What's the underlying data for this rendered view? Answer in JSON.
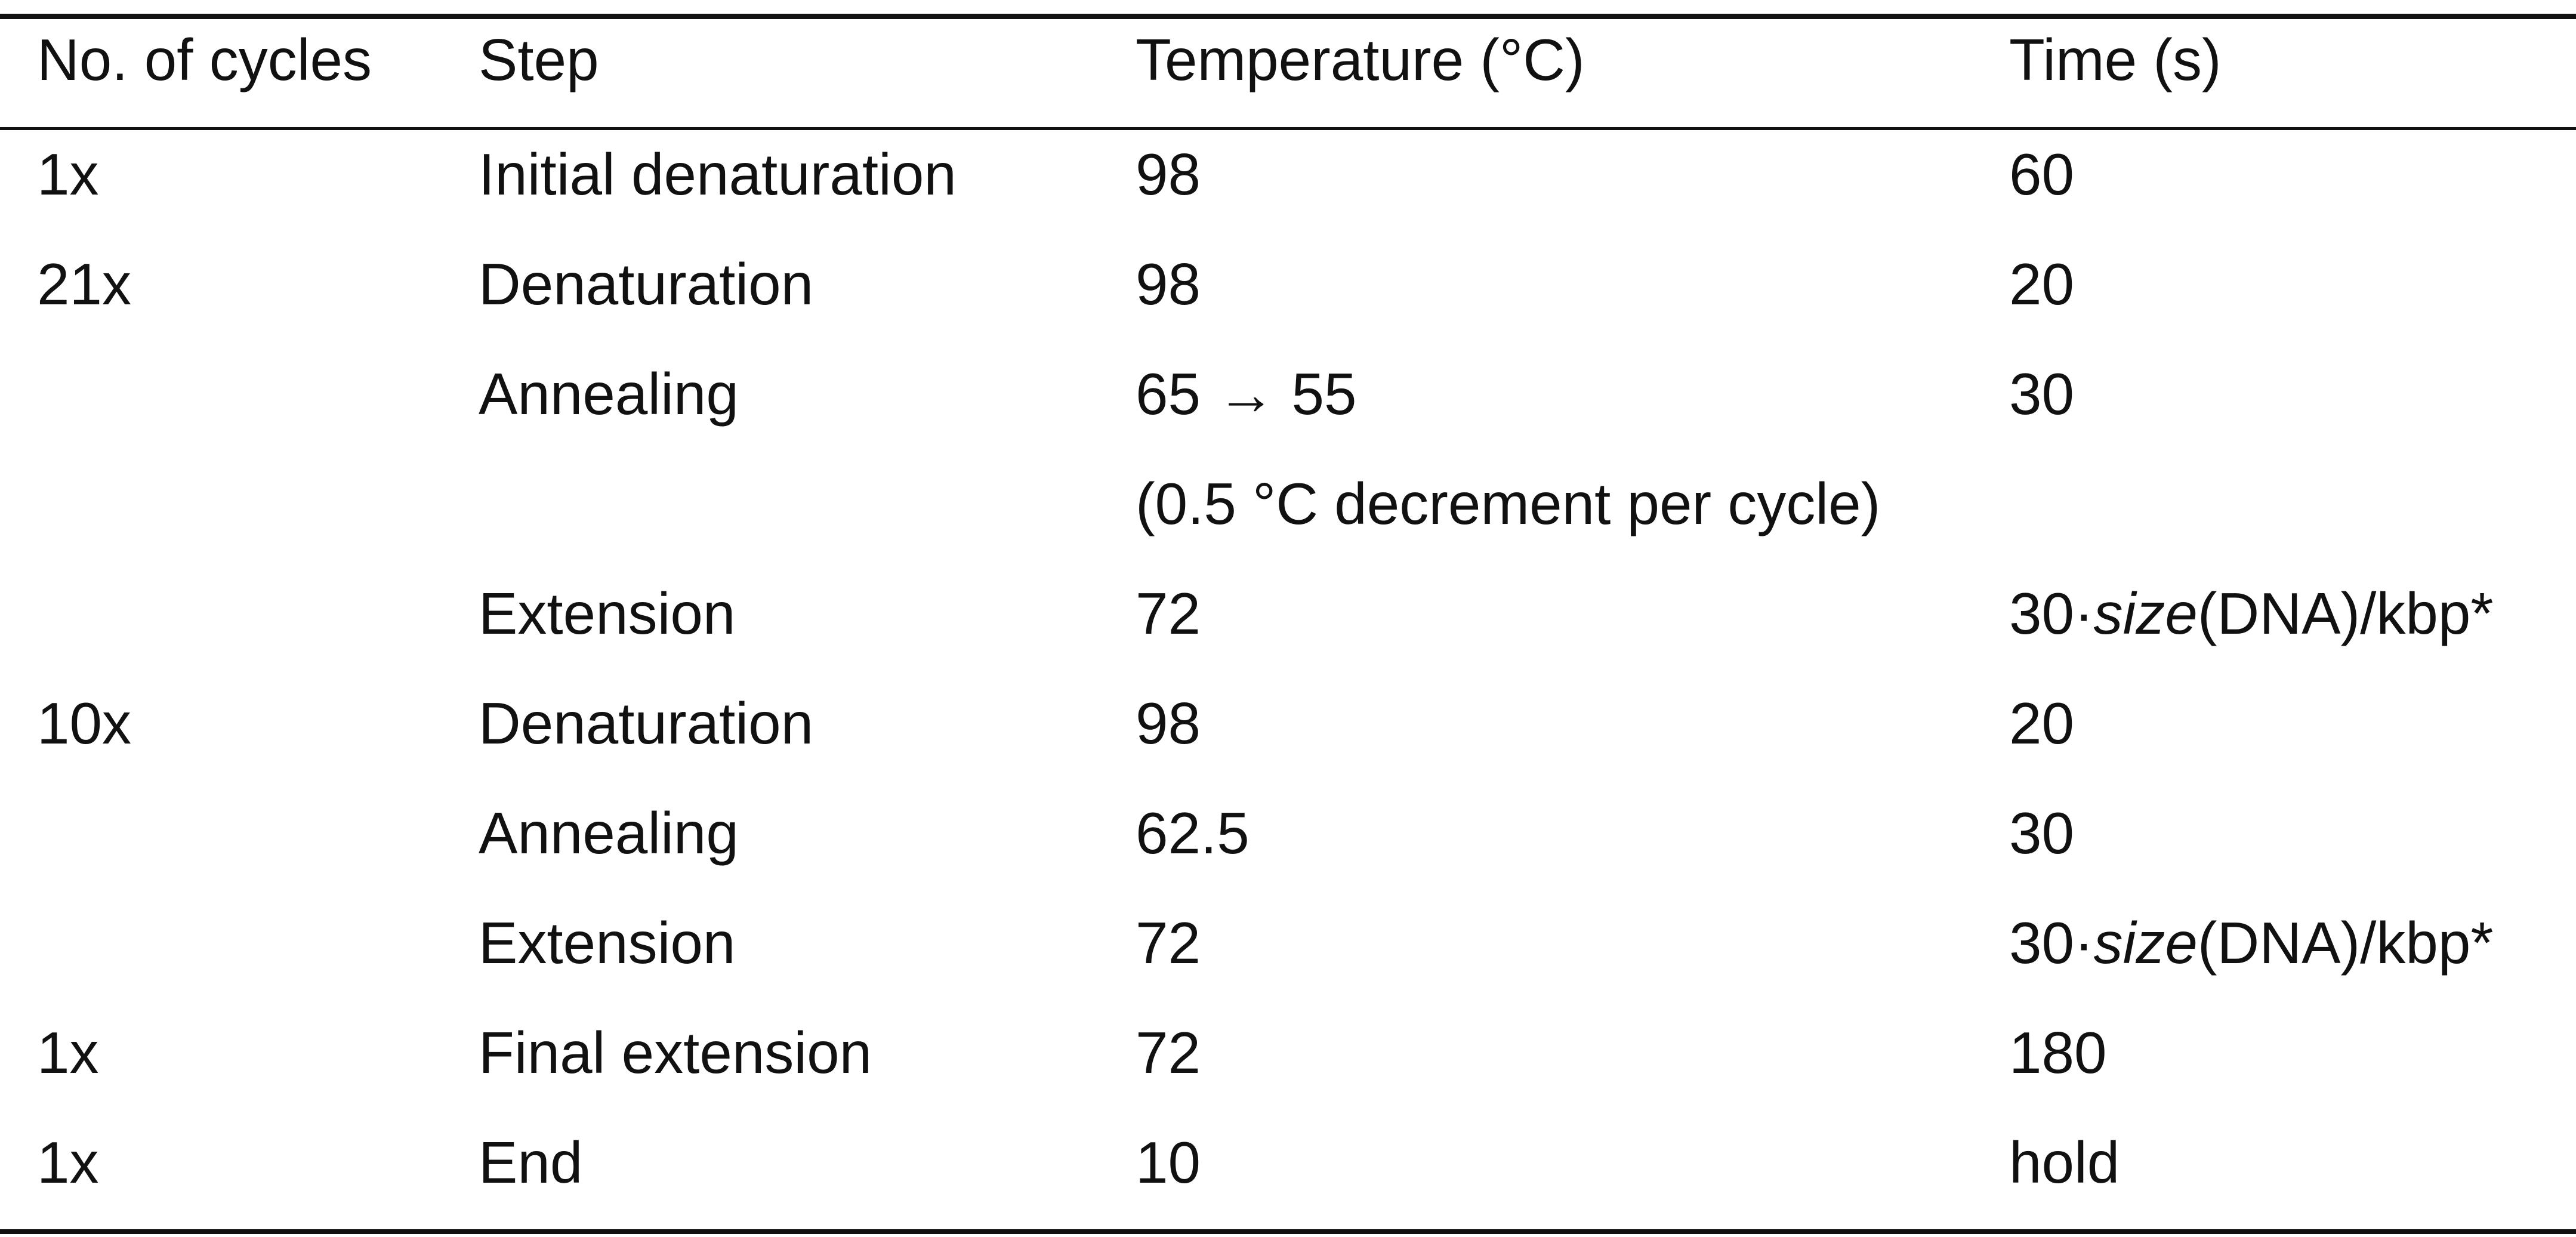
{
  "table": {
    "headers": [
      "No. of cycles",
      "Step",
      "Temperature (°C)",
      "Time (s)"
    ],
    "rows": [
      {
        "cycles": "1x",
        "step": "Initial denaturation",
        "temperature": "98",
        "time": "60"
      },
      {
        "cycles": "21x",
        "step": "Denaturation",
        "temperature": "98",
        "time": "20"
      },
      {
        "cycles": "",
        "step": "Annealing",
        "temperature": "65 → 55",
        "time": "30"
      },
      {
        "cycles": "",
        "step": "",
        "temperature": "(0.5 °C decrement per cycle)",
        "time": ""
      },
      {
        "cycles": "",
        "step": "Extension",
        "temperature": "72",
        "time_prefix": "30·",
        "time_italic": "size",
        "time_suffix": "(DNA)/kbp*"
      },
      {
        "cycles": "10x",
        "step": "Denaturation",
        "temperature": "98",
        "time": "20"
      },
      {
        "cycles": "",
        "step": "Annealing",
        "temperature": "62.5",
        "time": "30"
      },
      {
        "cycles": "",
        "step": "Extension",
        "temperature": "72",
        "time_prefix": "30·",
        "time_italic": "size",
        "time_suffix": "(DNA)/kbp*"
      },
      {
        "cycles": "1x",
        "step": "Final extension",
        "temperature": "72",
        "time": "180"
      },
      {
        "cycles": "1x",
        "step": "End",
        "temperature": "10",
        "time": "hold"
      }
    ]
  }
}
